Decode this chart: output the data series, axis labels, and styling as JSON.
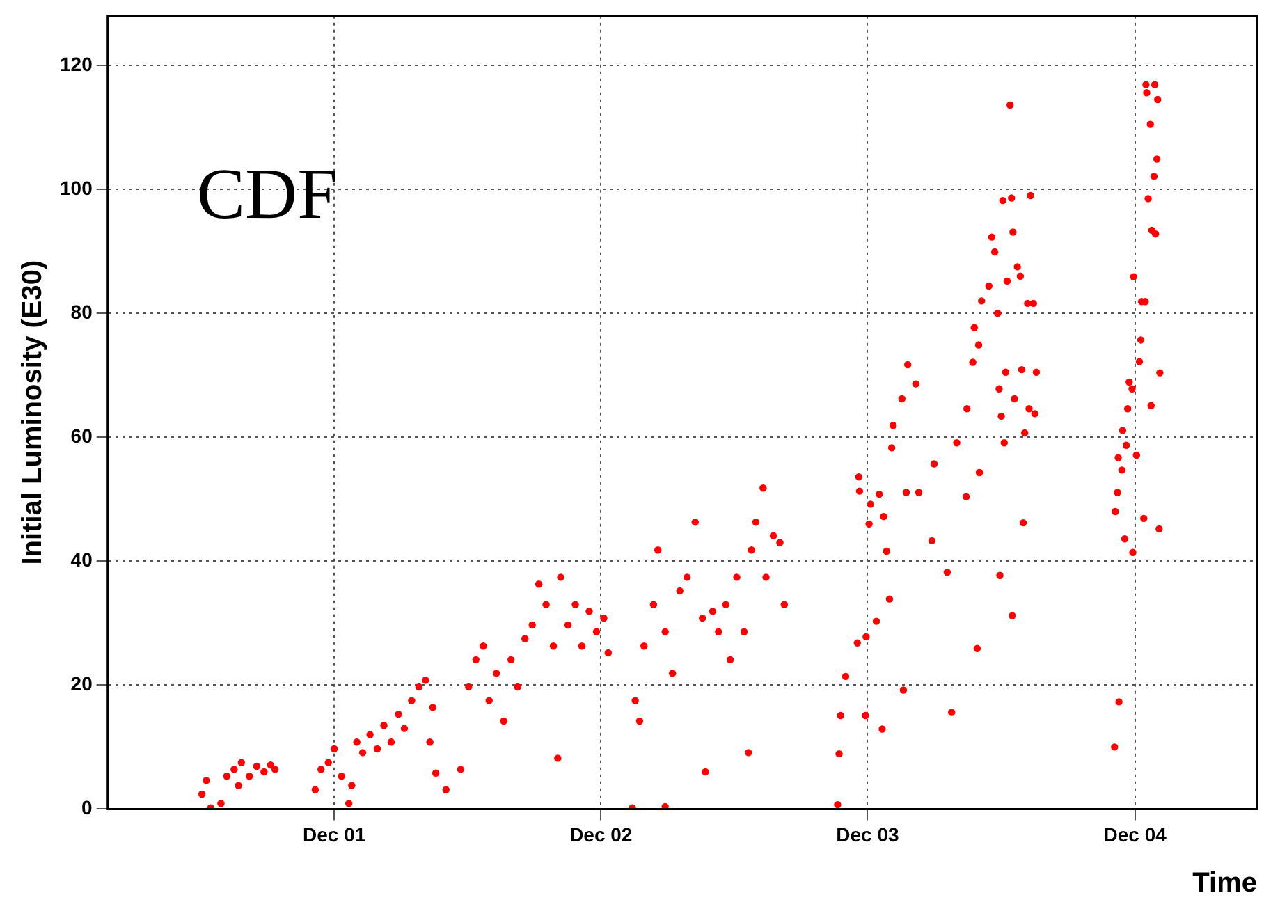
{
  "chart_data": {
    "type": "scatter",
    "xlabel": "Time",
    "ylabel": "Initial Luminosity (E30)",
    "annotations": [
      "CDF"
    ],
    "color": "#ff0000",
    "marker": "circle",
    "grid": true,
    "xlim": [
      "2001-01-25",
      "2005-05-17"
    ],
    "xticks": [
      {
        "value": "2001-12-01",
        "label": "Dec 01"
      },
      {
        "value": "2002-12-01",
        "label": "Dec 02"
      },
      {
        "value": "2003-12-01",
        "label": "Dec 03"
      },
      {
        "value": "2004-12-01",
        "label": "Dec 04"
      }
    ],
    "ylim": [
      0,
      128
    ],
    "yticks": [
      0,
      20,
      40,
      60,
      80,
      100,
      120
    ],
    "x": [
      "2001-06-03",
      "2001-06-09",
      "2001-06-15",
      "2001-06-29",
      "2001-07-07",
      "2001-07-17",
      "2001-07-23",
      "2001-07-27",
      "2001-08-07",
      "2001-08-17",
      "2001-08-27",
      "2001-09-05",
      "2001-09-11",
      "2001-11-05",
      "2001-11-13",
      "2001-11-23",
      "2001-12-01",
      "2001-12-11",
      "2001-12-21",
      "2001-12-25",
      "2002-01-01",
      "2002-01-09",
      "2002-01-19",
      "2002-01-29",
      "2002-02-07",
      "2002-02-17",
      "2002-02-27",
      "2002-03-07",
      "2002-03-17",
      "2002-03-27",
      "2002-04-05",
      "2002-04-11",
      "2002-04-15",
      "2002-04-19",
      "2002-05-03",
      "2002-05-23",
      "2002-06-03",
      "2002-06-13",
      "2002-06-23",
      "2002-07-01",
      "2002-07-11",
      "2002-07-21",
      "2002-07-31",
      "2002-08-09",
      "2002-08-19",
      "2002-08-29",
      "2002-09-07",
      "2002-09-17",
      "2002-09-27",
      "2002-10-03",
      "2002-10-07",
      "2002-10-17",
      "2002-10-27",
      "2002-11-05",
      "2002-11-15",
      "2002-11-25",
      "2002-12-05",
      "2002-12-11",
      "2003-01-13",
      "2003-01-17",
      "2003-01-23",
      "2003-01-29",
      "2003-02-11",
      "2003-02-17",
      "2003-02-27",
      "2003-02-27",
      "2003-03-09",
      "2003-03-19",
      "2003-03-29",
      "2003-04-09",
      "2003-04-19",
      "2003-04-23",
      "2003-05-03",
      "2003-05-11",
      "2003-05-21",
      "2003-05-27",
      "2003-06-05",
      "2003-06-15",
      "2003-06-21",
      "2003-06-25",
      "2003-07-01",
      "2003-07-11",
      "2003-07-15",
      "2003-07-25",
      "2003-08-03",
      "2003-08-09",
      "2003-10-21",
      "2003-10-23",
      "2003-10-25",
      "2003-11-01",
      "2003-11-17",
      "2003-11-19",
      "2003-11-20",
      "2003-11-29",
      "2003-11-28",
      "2003-12-03",
      "2003-12-05",
      "2003-12-13",
      "2003-12-17",
      "2003-12-21",
      "2003-12-23",
      "2003-12-27",
      "2003-12-31",
      "2004-01-03",
      "2004-01-05",
      "2004-01-17",
      "2004-01-19",
      "2004-01-23",
      "2004-01-25",
      "2004-02-05",
      "2004-02-09",
      "2004-02-27",
      "2004-03-01",
      "2004-03-19",
      "2004-03-25",
      "2004-04-01",
      "2004-04-15",
      "2004-04-14",
      "2004-04-23",
      "2004-04-25",
      "2004-04-29",
      "2004-05-01",
      "2004-05-02",
      "2004-05-05",
      "2004-05-15",
      "2004-05-19",
      "2004-05-23",
      "2004-05-27",
      "2004-05-29",
      "2004-05-30",
      "2004-06-01",
      "2004-06-03",
      "2004-06-05",
      "2004-06-07",
      "2004-06-09",
      "2004-06-13",
      "2004-06-15",
      "2004-06-16",
      "2004-06-17",
      "2004-06-19",
      "2004-06-23",
      "2004-06-27",
      "2004-06-29",
      "2004-07-01",
      "2004-07-03",
      "2004-07-07",
      "2004-07-09",
      "2004-07-11",
      "2004-07-15",
      "2004-07-17",
      "2004-07-19",
      "2004-11-03",
      "2004-11-04",
      "2004-11-07",
      "2004-11-08",
      "2004-11-09",
      "2004-11-13",
      "2004-11-14",
      "2004-11-17",
      "2004-11-19",
      "2004-11-21",
      "2004-11-23",
      "2004-11-27",
      "2004-11-28",
      "2004-11-29",
      "2004-12-03",
      "2004-12-07",
      "2004-12-09",
      "2004-12-10",
      "2004-12-13",
      "2004-12-15",
      "2004-12-16",
      "2004-12-17",
      "2004-12-19",
      "2004-12-23",
      "2004-12-24",
      "2004-12-22",
      "2004-12-27",
      "2004-12-28",
      "2004-12-29",
      "2004-12-31",
      "2005-01-01",
      "2005-01-03",
      "2005-01-04"
    ],
    "values": [
      2.4,
      4.6,
      0.2,
      0.9,
      5.3,
      6.4,
      3.8,
      7.5,
      5.3,
      6.9,
      6.0,
      7.1,
      6.4,
      3.1,
      6.4,
      7.5,
      9.7,
      5.3,
      0.9,
      3.8,
      10.8,
      9.1,
      12.0,
      9.7,
      13.5,
      10.8,
      15.3,
      13.0,
      17.5,
      19.7,
      20.8,
      10.8,
      16.4,
      5.8,
      3.1,
      6.4,
      19.7,
      24.1,
      26.3,
      17.5,
      21.9,
      14.2,
      24.1,
      19.7,
      27.5,
      29.7,
      36.3,
      33.0,
      26.3,
      8.2,
      37.4,
      29.7,
      33.0,
      26.3,
      31.9,
      28.6,
      30.8,
      25.2,
      0.2,
      17.5,
      14.2,
      26.3,
      33.0,
      41.8,
      28.6,
      0.4,
      21.9,
      35.2,
      37.4,
      46.3,
      30.8,
      6.0,
      31.9,
      28.6,
      33.0,
      24.1,
      37.4,
      28.6,
      9.1,
      41.8,
      46.3,
      51.8,
      37.4,
      44.1,
      43.0,
      33.0,
      0.7,
      8.9,
      15.1,
      21.4,
      26.8,
      53.6,
      51.3,
      27.8,
      15.1,
      46.0,
      49.2,
      30.3,
      50.8,
      12.9,
      47.2,
      41.6,
      33.9,
      58.3,
      61.9,
      66.2,
      19.2,
      51.1,
      71.7,
      68.6,
      51.1,
      43.3,
      55.7,
      38.2,
      15.6,
      59.1,
      64.6,
      50.4,
      72.1,
      77.7,
      25.9,
      74.9,
      54.3,
      82.0,
      84.4,
      92.3,
      89.9,
      80.0,
      67.8,
      37.7,
      63.4,
      98.2,
      59.1,
      70.5,
      85.2,
      113.6,
      98.6,
      31.2,
      93.1,
      66.2,
      87.5,
      86.0,
      70.9,
      46.2,
      60.7,
      81.6,
      64.6,
      99.0,
      81.6,
      63.8,
      70.5,
      10.0,
      48.0,
      51.1,
      56.7,
      17.3,
      54.7,
      61.1,
      43.6,
      58.7,
      64.6,
      68.9,
      67.8,
      41.4,
      85.9,
      57.1,
      72.2,
      75.7,
      81.9,
      46.9,
      81.9,
      116.9,
      115.6,
      98.5,
      65.1,
      93.4,
      110.5,
      102.1,
      116.9,
      92.8,
      104.9,
      114.5,
      45.2,
      70.4
    ]
  }
}
